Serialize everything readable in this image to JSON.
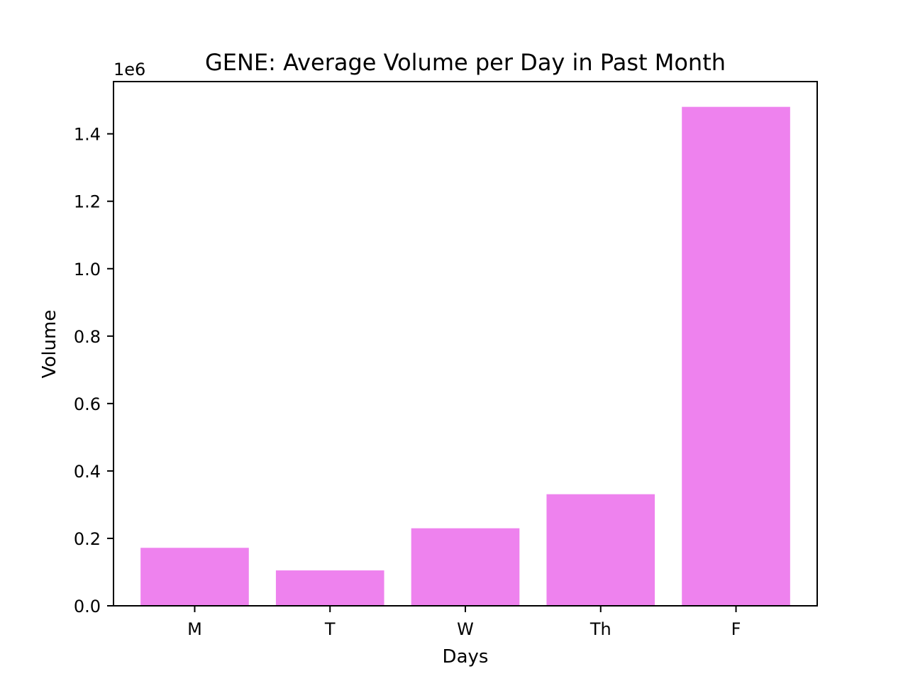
{
  "chart_data": {
    "type": "bar",
    "title": "GENE: Average Volume per Day in Past Month",
    "xlabel": "Days",
    "ylabel": "Volume",
    "y_multiplier_label": "1e6",
    "categories": [
      "M",
      "T",
      "W",
      "Th",
      "F"
    ],
    "values": [
      172000,
      105000,
      230000,
      331000,
      1480000
    ],
    "ylim": [
      0,
      1555000
    ],
    "yticks": [
      0,
      200000,
      400000,
      600000,
      800000,
      1000000,
      1200000,
      1400000
    ],
    "ytick_labels": [
      "0.0",
      "0.2",
      "0.4",
      "0.6",
      "0.8",
      "1.0",
      "1.2",
      "1.4"
    ],
    "bar_color": "#ee82ee",
    "grid": false,
    "legend": "none"
  }
}
